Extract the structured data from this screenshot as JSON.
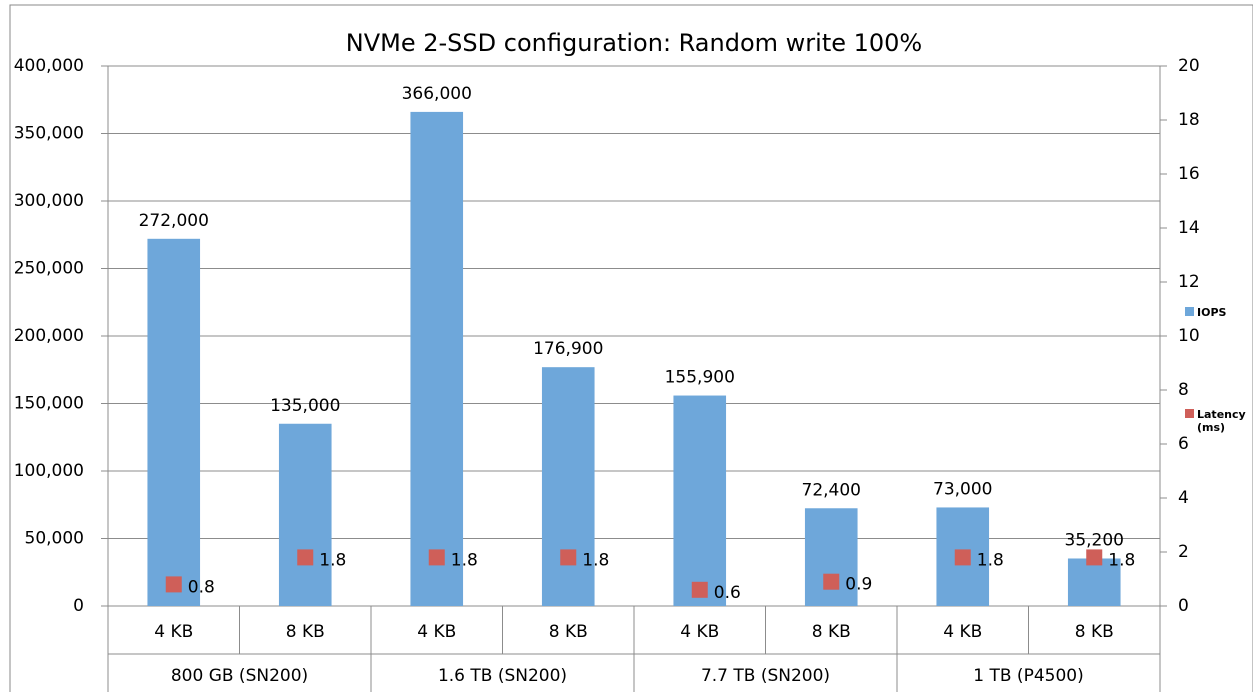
{
  "chart_data": {
    "type": "bar",
    "title": "NVMe 2-SSD configuration: Random write 100%",
    "categories": [
      "4 KB",
      "8 KB",
      "4 KB",
      "8 KB",
      "4 KB",
      "8 KB",
      "4 KB",
      "8 KB"
    ],
    "groups": [
      "800 GB (SN200)",
      "1.6 TB (SN200)",
      "7.7 TB (SN200)",
      "1 TB (P4500)"
    ],
    "series": [
      {
        "name": "IOPS",
        "type": "bar",
        "color": "#6ea7da",
        "values": [
          272000,
          135000,
          366000,
          176900,
          155900,
          72400,
          73000,
          35200
        ],
        "value_labels": [
          "272,000",
          "135,000",
          "366,000",
          "176,900",
          "155,900",
          "72,400",
          "73,000",
          "35,200"
        ]
      },
      {
        "name": "Latency (ms)",
        "type": "scatter",
        "axis": "y2",
        "color": "#cf5f59",
        "values": [
          0.8,
          1.8,
          1.8,
          1.8,
          0.6,
          0.9,
          1.8,
          1.8
        ]
      }
    ],
    "ylim": [
      0,
      400000
    ],
    "yticks": [
      0,
      {
        "value": 50000,
        "label": "50,000"
      },
      {
        "value": 100000,
        "label": "100,000"
      },
      {
        "value": 150000,
        "label": "150,000"
      },
      {
        "value": 200000,
        "label": "200,000"
      },
      {
        "value": 250000,
        "label": "250,000"
      },
      {
        "value": 300000,
        "label": "300,000"
      },
      {
        "value": 350000,
        "label": "350,000"
      },
      {
        "value": 400000,
        "label": "400,000"
      }
    ],
    "y2lim": [
      0,
      20
    ],
    "y2ticks": [
      0,
      2,
      4,
      6,
      8,
      10,
      12,
      14,
      16,
      18,
      20
    ],
    "grid": true,
    "legend": "right"
  }
}
